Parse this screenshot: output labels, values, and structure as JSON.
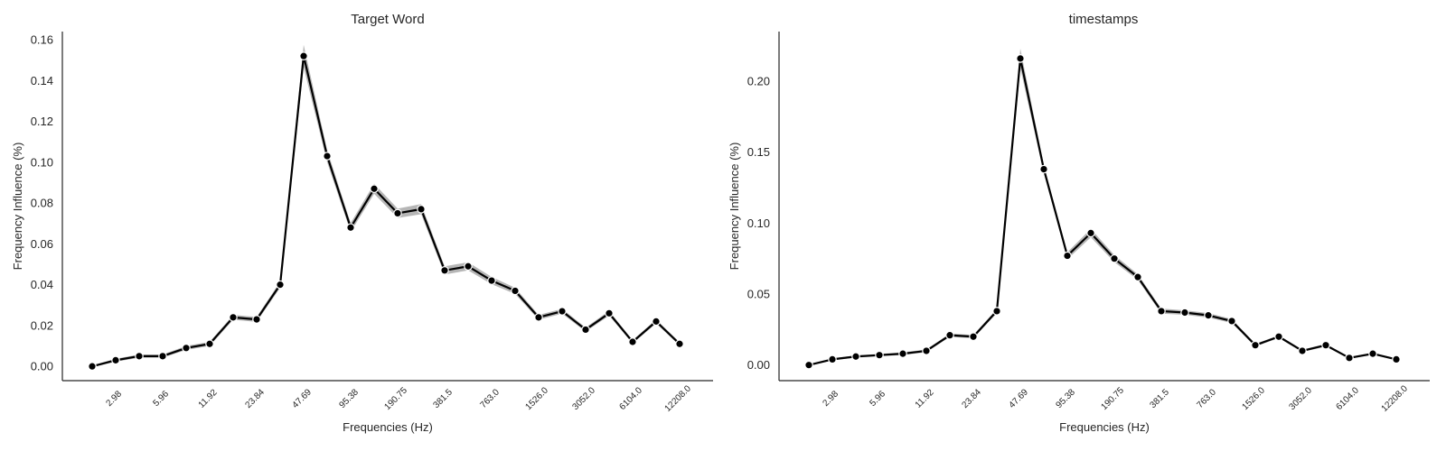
{
  "chart_data": [
    {
      "type": "line",
      "title": "Target Word",
      "xlabel": "Frequencies (Hz)",
      "ylabel": "Frequency Influence (%)",
      "ylim": [
        -0.007,
        0.164
      ],
      "yticks": [
        0.0,
        0.02,
        0.04,
        0.06,
        0.08,
        0.1,
        0.12,
        0.14,
        0.16
      ],
      "ytick_labels": [
        "0.00",
        "0.02",
        "0.04",
        "0.06",
        "0.08",
        "0.10",
        "0.12",
        "0.14",
        "0.16"
      ],
      "xtick_labels": [
        "2.98",
        "5.96",
        "11.92",
        "23.84",
        "47.69",
        "95.38",
        "190.75",
        "381.5",
        "763.0",
        "1526.0",
        "3052.0",
        "6104.0",
        "12208.0"
      ],
      "grid": false,
      "series": [
        {
          "values": [
            0.0,
            0.003,
            0.005,
            0.005,
            0.009,
            0.011,
            0.024,
            0.023,
            0.04,
            0.152,
            0.103,
            0.068,
            0.087,
            0.075,
            0.077,
            0.047,
            0.049,
            0.042,
            0.037,
            0.024,
            0.027,
            0.018,
            0.026,
            0.012,
            0.022,
            0.011
          ],
          "ci": [
            0.0005,
            0.0007,
            0.0008,
            0.0008,
            0.001,
            0.001,
            0.0012,
            0.0012,
            0.0015,
            0.0055,
            0.003,
            0.0022,
            0.0025,
            0.0023,
            0.0025,
            0.002,
            0.002,
            0.0018,
            0.0015,
            0.0012,
            0.0012,
            0.001,
            0.0012,
            0.0008,
            0.001,
            0.0008
          ]
        }
      ]
    },
    {
      "type": "line",
      "title": "timestamps",
      "xlabel": "Frequencies (Hz)",
      "ylabel": "Frequency Influence (%)",
      "ylim": [
        -0.011,
        0.235
      ],
      "yticks": [
        0.0,
        0.05,
        0.1,
        0.15,
        0.2
      ],
      "ytick_labels": [
        "0.00",
        "0.05",
        "0.10",
        "0.15",
        "0.20"
      ],
      "xtick_labels": [
        "2.98",
        "5.96",
        "11.92",
        "23.84",
        "47.69",
        "95.38",
        "190.75",
        "381.5",
        "763.0",
        "1526.0",
        "3052.0",
        "6104.0",
        "12208.0"
      ],
      "grid": false,
      "series": [
        {
          "values": [
            0.0,
            0.004,
            0.006,
            0.007,
            0.008,
            0.01,
            0.021,
            0.02,
            0.038,
            0.216,
            0.138,
            0.077,
            0.093,
            0.075,
            0.062,
            0.038,
            0.037,
            0.035,
            0.031,
            0.014,
            0.02,
            0.01,
            0.014,
            0.005,
            0.008,
            0.004
          ],
          "ci": [
            0.0005,
            0.0007,
            0.0008,
            0.0008,
            0.001,
            0.001,
            0.0012,
            0.0012,
            0.0015,
            0.007,
            0.003,
            0.0025,
            0.003,
            0.0025,
            0.002,
            0.0018,
            0.0016,
            0.0016,
            0.0014,
            0.001,
            0.001,
            0.0008,
            0.001,
            0.0006,
            0.0007,
            0.0006
          ]
        }
      ]
    }
  ]
}
